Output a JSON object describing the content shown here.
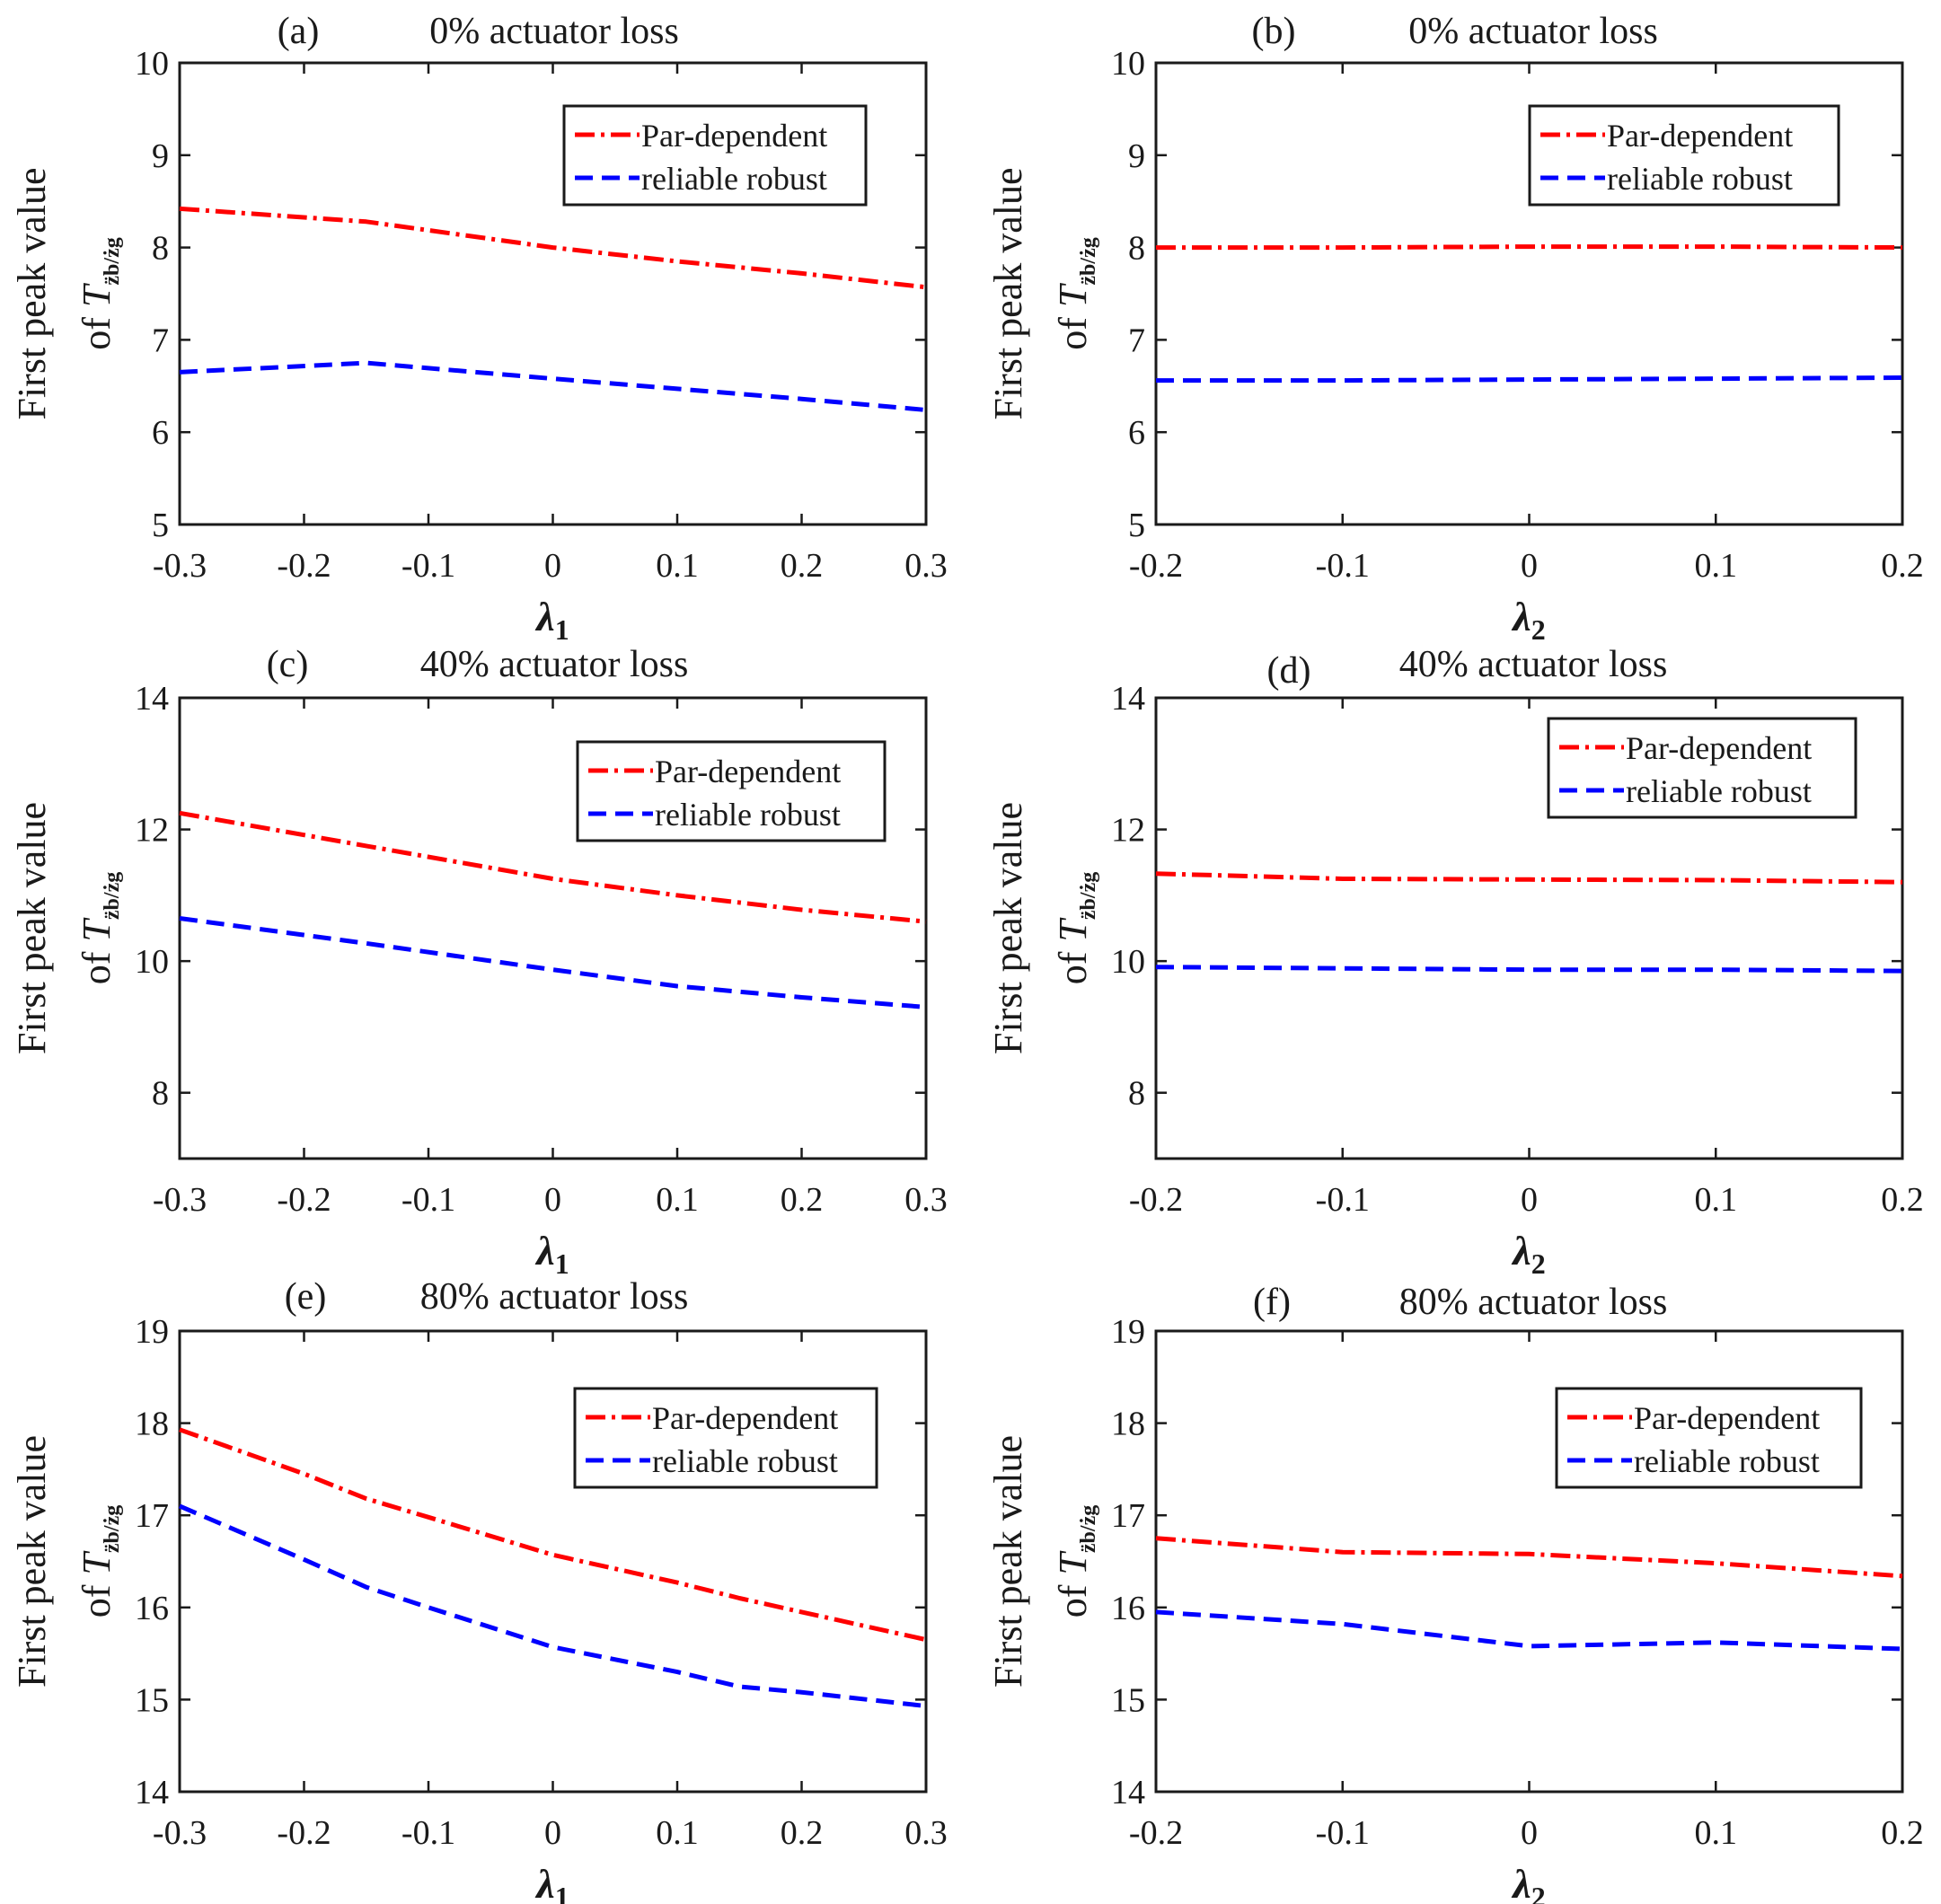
{
  "figure": {
    "ylabel_line1": "First peak value",
    "ylabel_prefix": "of ",
    "ylabel_symbol": "T",
    "ylabel_subscript": "z̈b/żg",
    "lambda_symbol": "λ",
    "legend": [
      "Par-dependent",
      "reliable robust"
    ],
    "colors": {
      "par_dependent": "#ff0000",
      "reliable_robust": "#0000ff",
      "axes": "#1a1a1a"
    },
    "line_styles": {
      "par_dependent": "dash-dot",
      "reliable_robust": "dashed"
    }
  },
  "chart_data": [
    {
      "panel": "(a)",
      "title": "0% actuator loss",
      "type": "line",
      "xlabel_sub": "1",
      "xlim": [
        -0.3,
        0.3
      ],
      "ylim": [
        5,
        10
      ],
      "xticks": [
        "-0.3",
        "-0.2",
        "-0.1",
        "0",
        "0.1",
        "0.2",
        "0.3"
      ],
      "yticks": [
        "5",
        "6",
        "7",
        "8",
        "9",
        "10"
      ],
      "x": [
        -0.3,
        -0.15,
        0,
        0.1,
        0.2,
        0.3
      ],
      "series": [
        {
          "name": "Par-dependent",
          "values": [
            8.42,
            8.28,
            8.0,
            7.85,
            7.72,
            7.57
          ]
        },
        {
          "name": "reliable robust",
          "values": [
            6.65,
            6.75,
            6.58,
            6.47,
            6.36,
            6.24
          ]
        }
      ]
    },
    {
      "panel": "(b)",
      "title": "0% actuator loss",
      "type": "line",
      "xlabel_sub": "2",
      "xlim": [
        -0.2,
        0.2
      ],
      "ylim": [
        5,
        10
      ],
      "xticks": [
        "-0.2",
        "-0.1",
        "0",
        "0.1",
        "0.2"
      ],
      "yticks": [
        "5",
        "6",
        "7",
        "8",
        "9",
        "10"
      ],
      "x": [
        -0.2,
        -0.1,
        0,
        0.1,
        0.2
      ],
      "series": [
        {
          "name": "Par-dependent",
          "values": [
            8.0,
            8.0,
            8.01,
            8.01,
            8.0
          ]
        },
        {
          "name": "reliable robust",
          "values": [
            6.56,
            6.56,
            6.57,
            6.58,
            6.59
          ]
        }
      ]
    },
    {
      "panel": "(c)",
      "title": "40% actuator loss",
      "type": "line",
      "xlabel_sub": "1",
      "xlim": [
        -0.3,
        0.3
      ],
      "ylim": [
        7,
        14
      ],
      "xticks": [
        "-0.3",
        "-0.2",
        "-0.1",
        "0",
        "0.1",
        "0.2",
        "0.3"
      ],
      "yticks": [
        "8",
        "10",
        "12",
        "14"
      ],
      "x": [
        -0.3,
        -0.15,
        0,
        0.1,
        0.2,
        0.3
      ],
      "series": [
        {
          "name": "Par-dependent",
          "values": [
            12.25,
            11.75,
            11.25,
            11.0,
            10.78,
            10.6
          ]
        },
        {
          "name": "reliable robust",
          "values": [
            10.65,
            10.27,
            9.87,
            9.62,
            9.45,
            9.3
          ]
        }
      ]
    },
    {
      "panel": "(d)",
      "title": "40% actuator loss",
      "type": "line",
      "xlabel_sub": "2",
      "xlim": [
        -0.2,
        0.2
      ],
      "ylim": [
        7,
        14
      ],
      "xticks": [
        "-0.2",
        "-0.1",
        "0",
        "0.1",
        "0.2"
      ],
      "yticks": [
        "8",
        "10",
        "12",
        "14"
      ],
      "x": [
        -0.2,
        -0.1,
        0,
        0.1,
        0.2
      ],
      "series": [
        {
          "name": "Par-dependent",
          "values": [
            11.33,
            11.25,
            11.24,
            11.23,
            11.2
          ]
        },
        {
          "name": "reliable robust",
          "values": [
            9.91,
            9.89,
            9.87,
            9.87,
            9.85
          ]
        }
      ]
    },
    {
      "panel": "(e)",
      "title": "80% actuator loss",
      "type": "line",
      "xlabel_sub": "1",
      "xlim": [
        -0.3,
        0.3
      ],
      "ylim": [
        14,
        19
      ],
      "xticks": [
        "-0.3",
        "-0.2",
        "-0.1",
        "0",
        "0.1",
        "0.2",
        "0.3"
      ],
      "yticks": [
        "14",
        "15",
        "16",
        "17",
        "18",
        "19"
      ],
      "x": [
        -0.3,
        -0.2,
        -0.15,
        -0.1,
        0,
        0.1,
        0.15,
        0.2,
        0.3
      ],
      "series": [
        {
          "name": "Par-dependent",
          "values": [
            17.93,
            17.45,
            17.18,
            16.98,
            16.57,
            16.27,
            16.1,
            15.95,
            15.65
          ]
        },
        {
          "name": "reliable robust",
          "values": [
            17.1,
            16.52,
            16.22,
            16.0,
            15.57,
            15.3,
            15.14,
            15.08,
            14.93
          ]
        }
      ]
    },
    {
      "panel": "(f)",
      "title": "80% actuator loss",
      "type": "line",
      "xlabel_sub": "2",
      "xlim": [
        -0.2,
        0.2
      ],
      "ylim": [
        14,
        19
      ],
      "xticks": [
        "-0.2",
        "-0.1",
        "0",
        "0.1",
        "0.2"
      ],
      "yticks": [
        "14",
        "15",
        "16",
        "17",
        "18",
        "19"
      ],
      "x": [
        -0.2,
        -0.1,
        0,
        0.1,
        0.2
      ],
      "series": [
        {
          "name": "Par-dependent",
          "values": [
            16.75,
            16.6,
            16.58,
            16.48,
            16.34
          ]
        },
        {
          "name": "reliable robust",
          "values": [
            15.95,
            15.82,
            15.58,
            15.62,
            15.55
          ]
        }
      ]
    }
  ]
}
